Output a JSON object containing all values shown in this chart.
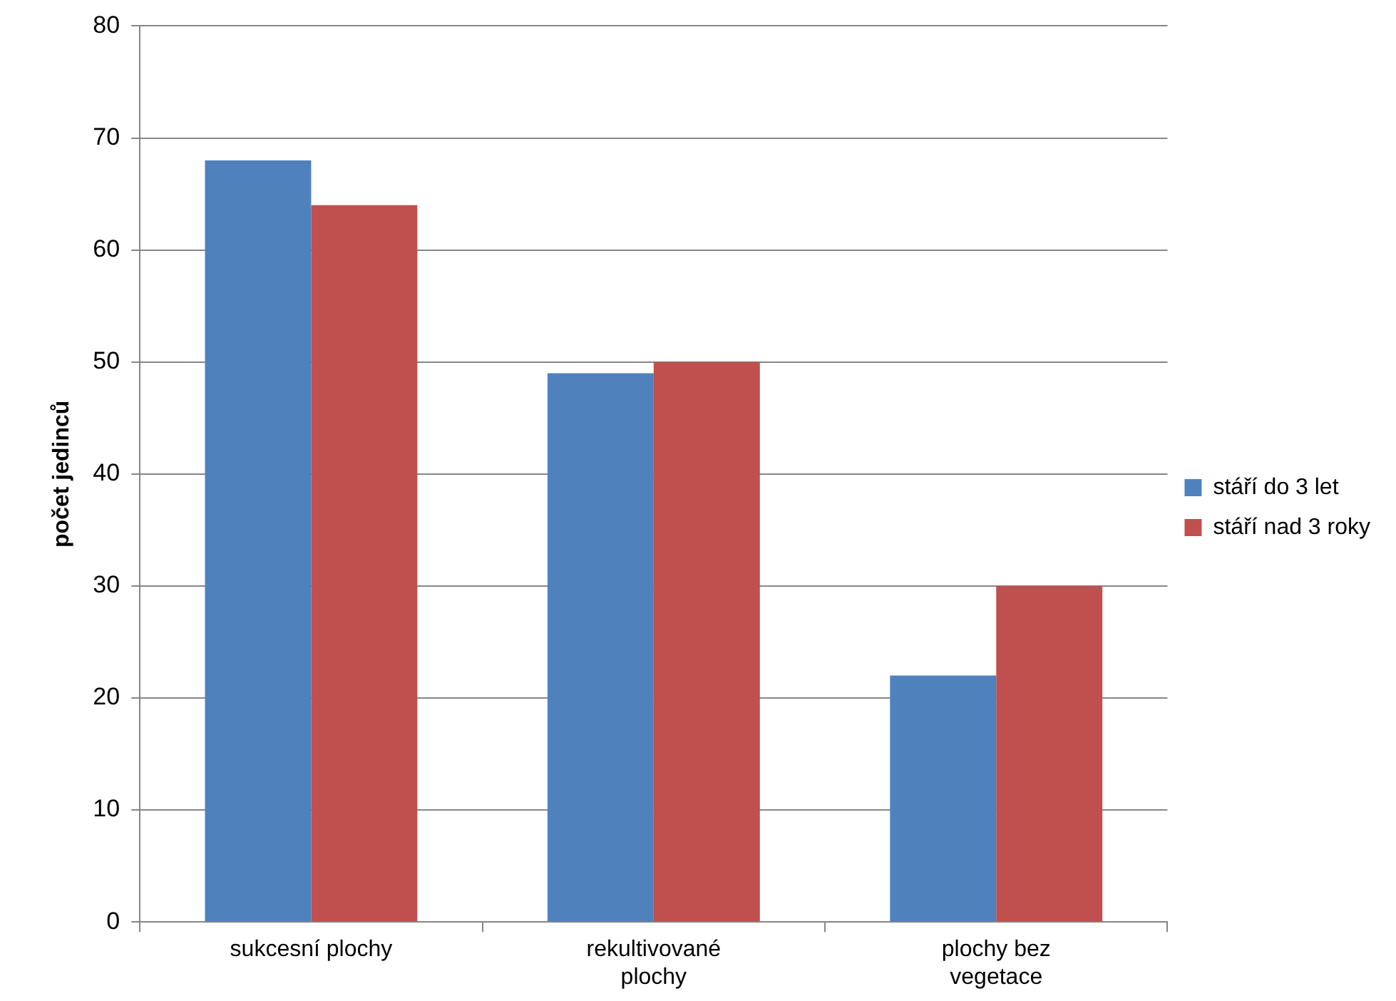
{
  "chart_data": {
    "type": "bar",
    "ylabel": "počet jedinců",
    "categories": [
      "sukcesní plochy",
      "rekultivované plochy",
      "plochy bez vegetace"
    ],
    "series": [
      {
        "name": "stáří do 3 let",
        "color": "#4f81bd",
        "values": [
          68,
          49,
          22
        ]
      },
      {
        "name": "stáří nad 3 roky",
        "color": "#c0504d",
        "values": [
          64,
          50,
          30
        ]
      }
    ],
    "ylim": [
      0,
      80
    ],
    "yticks": [
      0,
      10,
      20,
      30,
      40,
      50,
      60,
      70,
      80
    ],
    "grid": "y",
    "legend": "right"
  }
}
